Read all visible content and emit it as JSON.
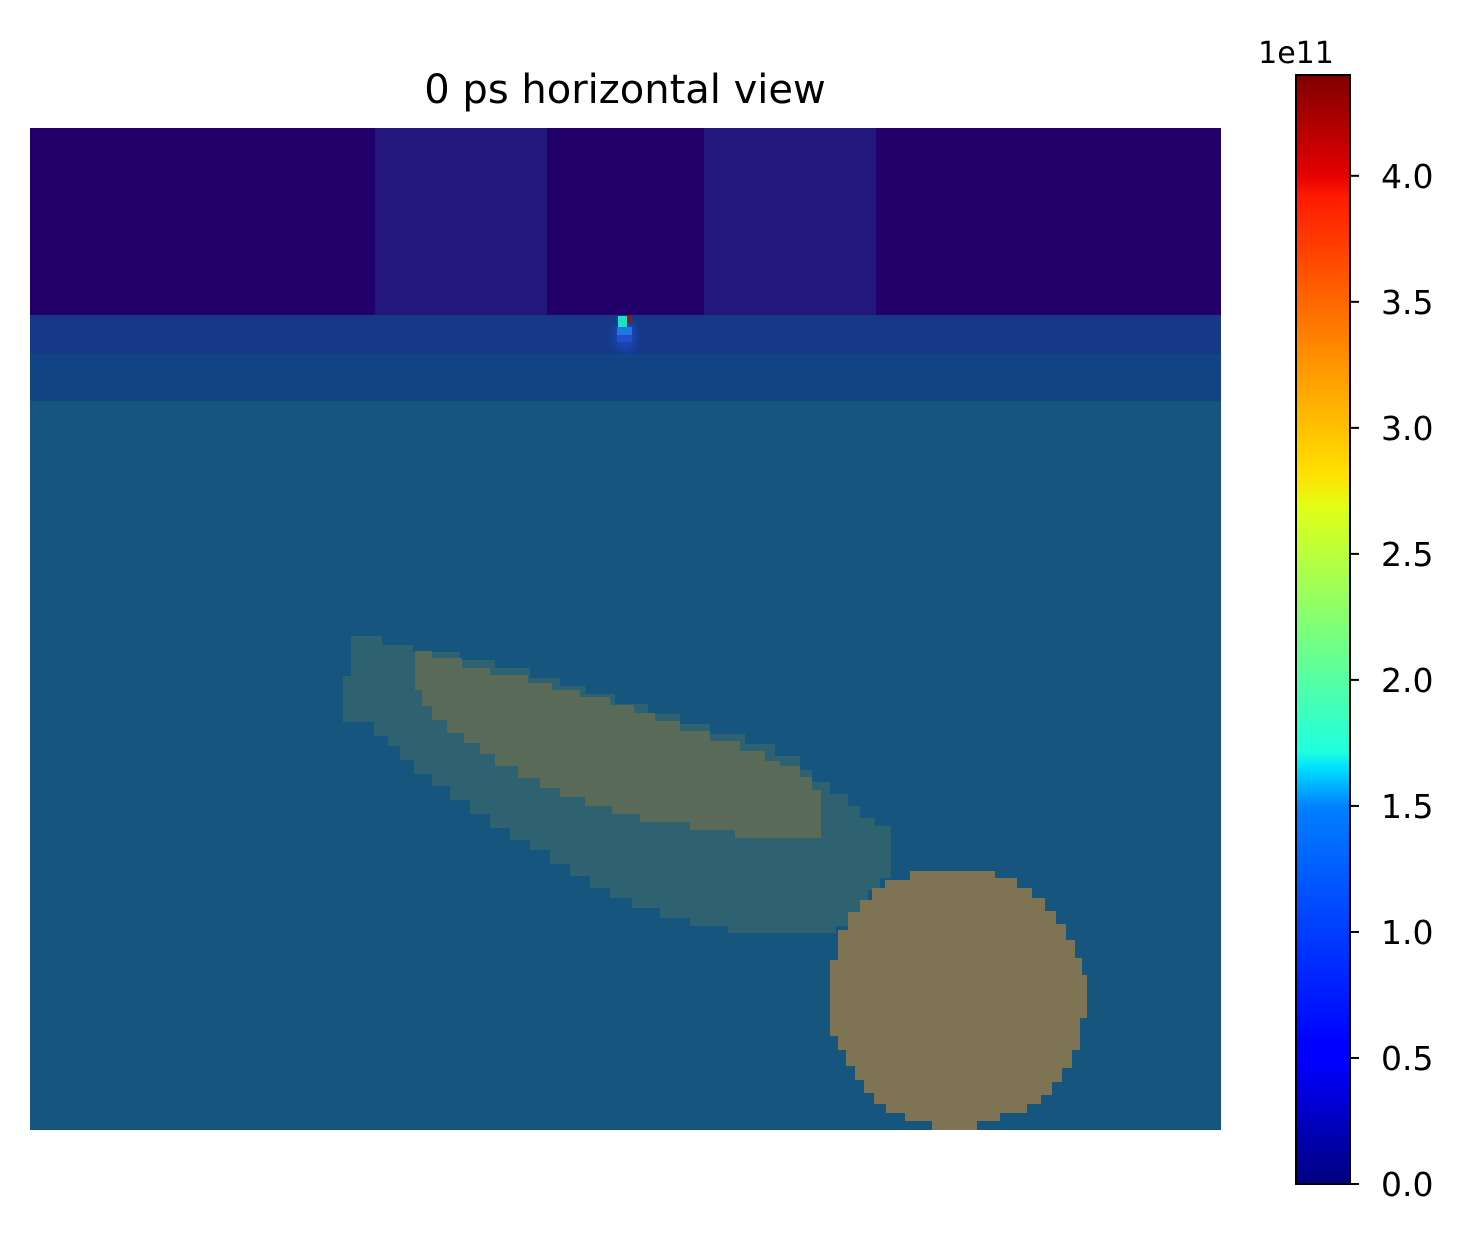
{
  "chart_data": {
    "type": "heatmap",
    "title": "0 ps horizontal view",
    "axes_visible": false,
    "colormap": "jet",
    "colorbar": {
      "position": "right",
      "offset_text": "1e11",
      "ticks": [
        0.0,
        0.5,
        1.0,
        1.5,
        2.0,
        2.5,
        3.0,
        3.5,
        4.0
      ],
      "tick_labels": [
        "0.0",
        "0.5",
        "1.0",
        "1.5",
        "2.0",
        "2.5",
        "3.0",
        "3.5",
        "4.0"
      ],
      "vmin": 0.0,
      "vmax": 4.4
    },
    "overlay": {
      "description": "structure mask overlaid on field map",
      "colors": {
        "air": "#22006a",
        "air_light": "#23177d",
        "layer_1": "#163887",
        "layer_2": "#124485",
        "substrate": "#16567e",
        "lobe_outer": "#2f6270",
        "lobe_inner": "#5a6a58",
        "sphere": "#7e7453"
      }
    },
    "hotspot": {
      "values_e11": [
        4.4,
        1.8,
        1.2,
        0.6
      ],
      "colors": [
        "#8b1a10",
        "#1de0c8",
        "#1f78e0",
        "#2050c8"
      ]
    }
  }
}
